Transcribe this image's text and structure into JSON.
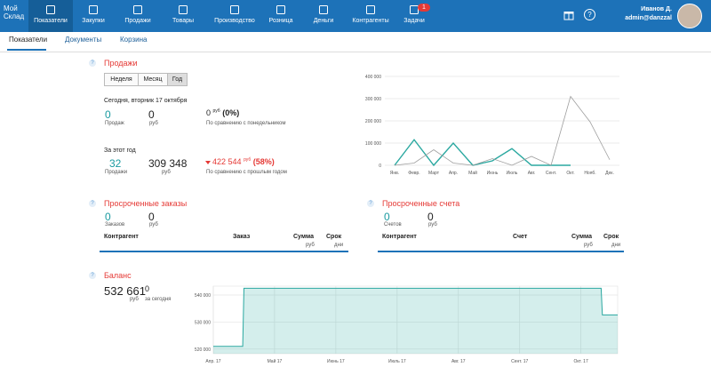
{
  "nav": {
    "logo": "Мой Склад",
    "items": [
      "Показатели",
      "Закупки",
      "Продажи",
      "Товары",
      "Производство",
      "Розница",
      "Деньги",
      "Контрагенты",
      "Задачи"
    ],
    "badge": "1",
    "help": "?",
    "user_name": "Иванов Д.",
    "user_login": "admin@danzzal"
  },
  "tabs": [
    "Показатели",
    "Документы",
    "Корзина"
  ],
  "help": "?",
  "sales": {
    "title": "Продажи",
    "periods": [
      "Неделя",
      "Месяц",
      "Год"
    ],
    "today_label": "Сегодня, вторник 17 октября",
    "today_count": "0",
    "today_count_label": "Продаж",
    "today_sum": "0",
    "today_sum_label": "руб",
    "today_delta": "0",
    "today_delta_unit": "руб",
    "today_delta_pct": "(0%)",
    "today_delta_label": "По сравнению с понедельником",
    "year_label": "За этот год",
    "year_count": "32",
    "year_count_label": "Продажи",
    "year_sum": "309 348",
    "year_sum_label": "руб",
    "year_delta": "422 544",
    "year_delta_unit": "руб",
    "year_delta_pct": "(58%)",
    "year_delta_label": "По сравнению с прошлым годом",
    "chart": {
      "type": "line",
      "categories": [
        "Янв.",
        "Февр.",
        "Март",
        "Апр.",
        "Май",
        "Июнь",
        "Июль",
        "Авг.",
        "Сент.",
        "Окт.",
        "Нояб.",
        "Дек."
      ],
      "series": [
        {
          "color": "#2aa8a0",
          "values": [
            0,
            115000,
            0,
            100000,
            0,
            20000,
            75000,
            0,
            0,
            0,
            null,
            null
          ]
        },
        {
          "color": "#9e9e9e",
          "values": [
            0,
            10000,
            70000,
            10000,
            0,
            30000,
            0,
            40000,
            0,
            310000,
            195000,
            25000
          ]
        }
      ],
      "ylim": [
        0,
        400000
      ],
      "yticks": [
        0,
        {
          "value": 100000,
          "label": "100 000"
        },
        {
          "value": 200000,
          "label": "200 000"
        },
        {
          "value": 300000,
          "label": "300 000"
        },
        {
          "value": 400000,
          "label": "400 000"
        }
      ],
      "grid": true
    }
  },
  "orders": {
    "title": "Просроченные заказы",
    "count": "0",
    "count_label": "Заказов",
    "sum": "0",
    "sum_label": "руб",
    "columns": [
      "Контрагент",
      "Заказ",
      "Сумма",
      "Срок"
    ],
    "column_units": [
      "руб",
      "дни"
    ]
  },
  "invoices": {
    "title": "Просроченные счета",
    "count": "0",
    "count_label": "Счетов",
    "sum": "0",
    "sum_label": "руб",
    "columns": [
      "Контрагент",
      "Счет",
      "Сумма",
      "Срок"
    ],
    "column_units": [
      "руб",
      "дни"
    ]
  },
  "balance": {
    "title": "Баланс",
    "value": "532 661",
    "value_label": "руб",
    "today": "0",
    "today_label": "за сегодня",
    "chart": {
      "type": "area",
      "color": "#2aa8a0",
      "x": [
        0,
        0.48,
        0.5,
        6.33,
        6.35,
        6.6
      ],
      "values": [
        521000,
        521000,
        542500,
        542500,
        532661,
        532661
      ],
      "xlim": [
        0,
        6.6
      ],
      "xticks": [
        {
          "value": 0,
          "label": "Апр. 17"
        },
        {
          "value": 1,
          "label": "Май 17"
        },
        {
          "value": 2,
          "label": "Июнь 17"
        },
        {
          "value": 3,
          "label": "Июль 17"
        },
        {
          "value": 4,
          "label": "Авг. 17"
        },
        {
          "value": 5,
          "label": "Сент. 17"
        },
        {
          "value": 6,
          "label": "Окт. 17"
        }
      ],
      "ylim": [
        518300,
        543300
      ],
      "yticks": [
        {
          "value": 520000,
          "label": "520 000"
        },
        {
          "value": 530000,
          "label": "530 000"
        },
        {
          "value": 540000,
          "label": "540 000"
        }
      ],
      "grid": true
    }
  }
}
